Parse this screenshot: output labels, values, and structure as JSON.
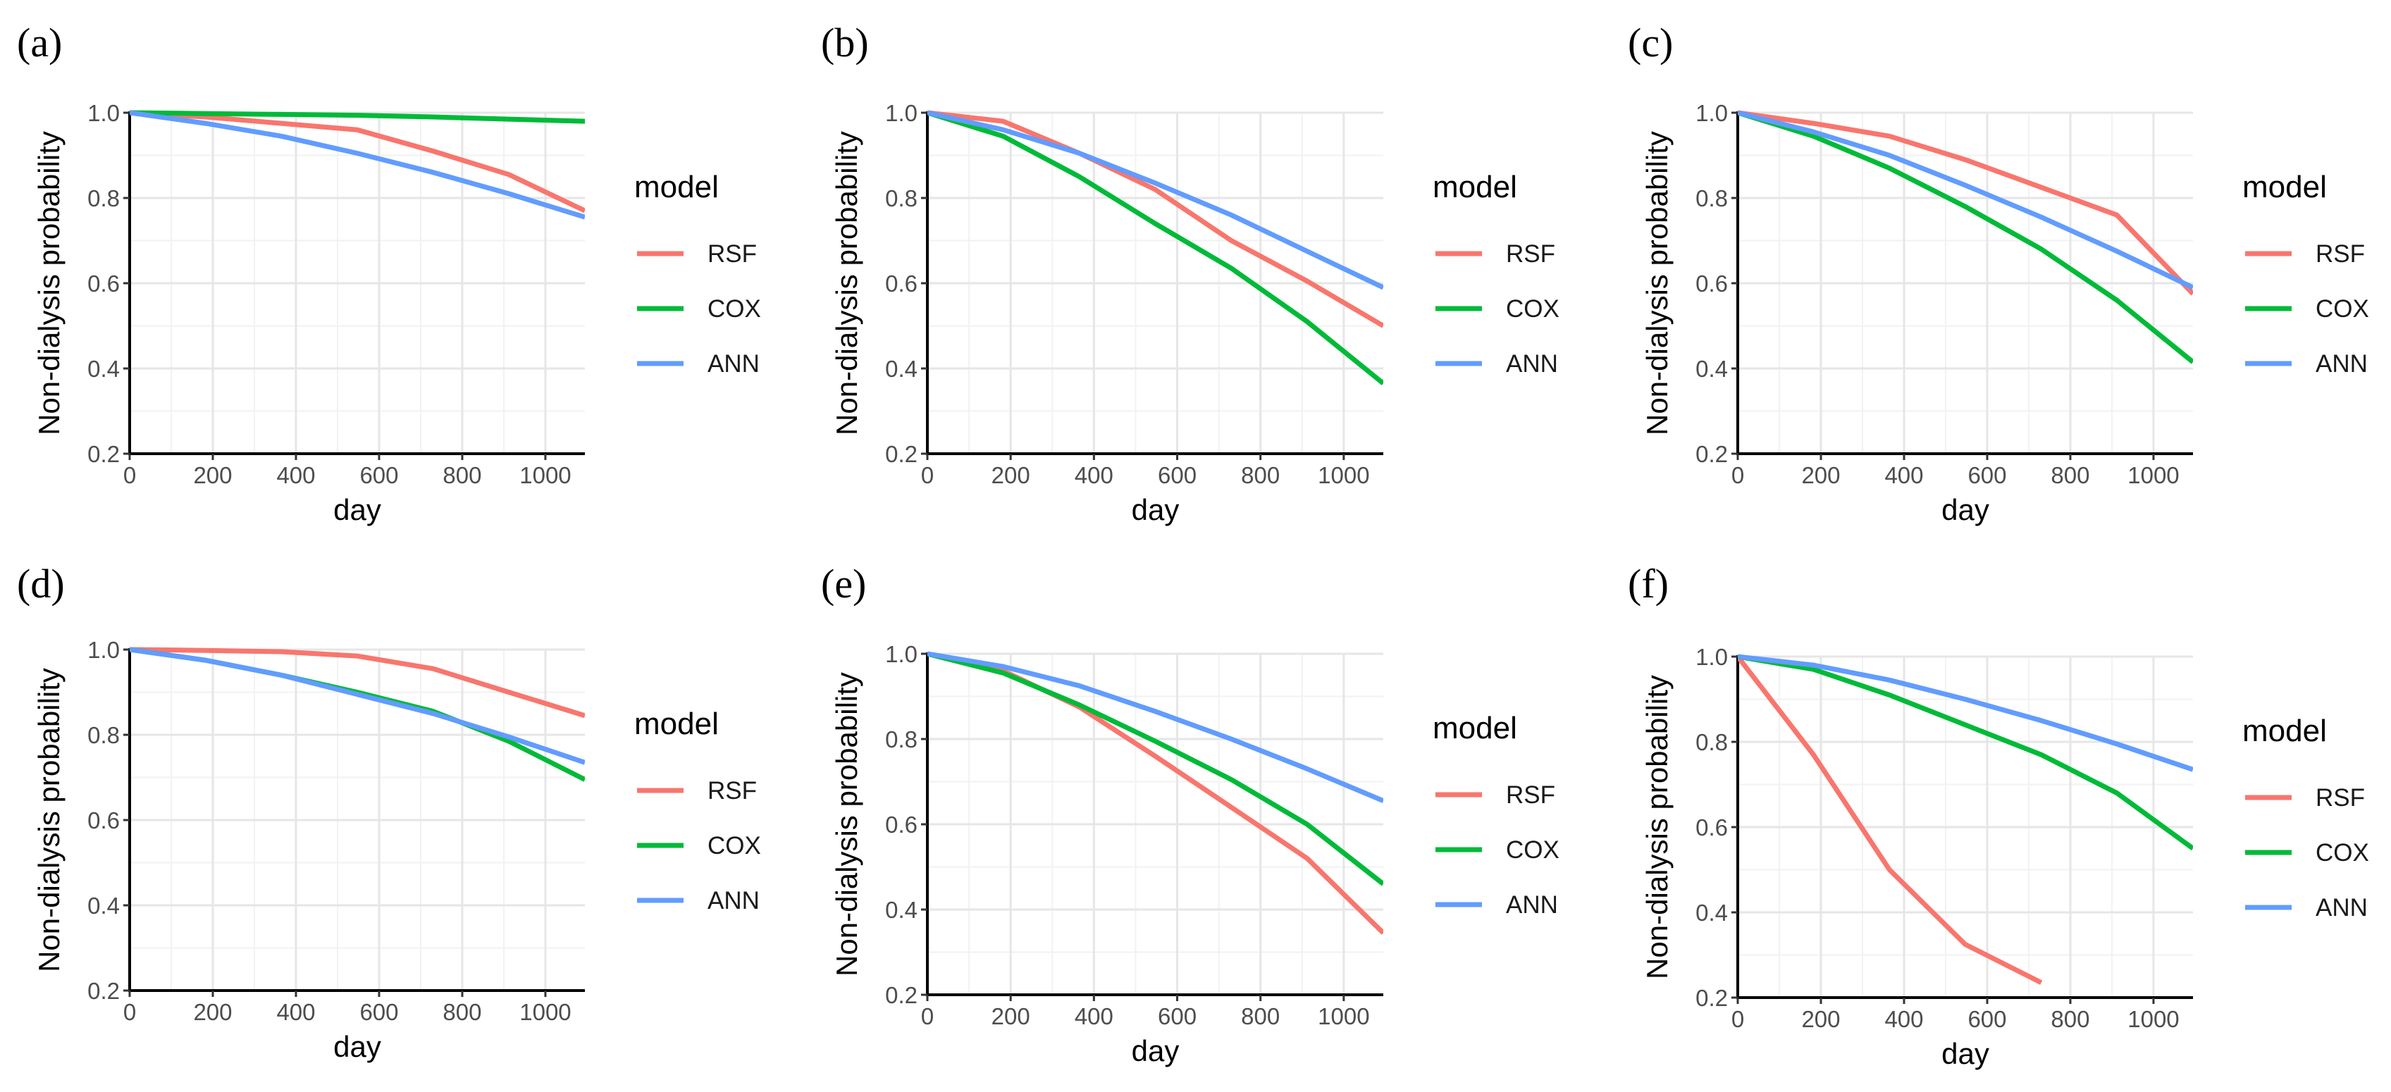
{
  "colors": {
    "RSF": "#F8766D",
    "COX": "#00BA38",
    "ANN": "#619CFF"
  },
  "chart_data": [
    {
      "panel": "(a)",
      "type": "line",
      "xlabel": "day",
      "ylabel": "Non-dialysis probability",
      "xlim": [
        0,
        1095
      ],
      "ylim": [
        0.2,
        1.0
      ],
      "xticks": [
        0,
        200,
        400,
        600,
        800,
        1000
      ],
      "yticks": [
        0.2,
        0.4,
        0.6,
        0.8,
        1.0
      ],
      "grid": true,
      "legend_title": "model",
      "legend_position": "right",
      "x": [
        0,
        182,
        365,
        547,
        730,
        912,
        1095
      ],
      "series": [
        {
          "name": "RSF",
          "values": [
            1.0,
            0.99,
            0.975,
            0.96,
            0.91,
            0.855,
            0.77
          ]
        },
        {
          "name": "COX",
          "values": [
            1.0,
            0.998,
            0.996,
            0.994,
            0.99,
            0.985,
            0.98
          ]
        },
        {
          "name": "ANN",
          "values": [
            1.0,
            0.975,
            0.945,
            0.905,
            0.86,
            0.81,
            0.755
          ]
        }
      ]
    },
    {
      "panel": "(b)",
      "type": "line",
      "xlabel": "day",
      "ylabel": "Non-dialysis probability",
      "xlim": [
        0,
        1095
      ],
      "ylim": [
        0.2,
        1.0
      ],
      "xticks": [
        0,
        200,
        400,
        600,
        800,
        1000
      ],
      "yticks": [
        0.2,
        0.4,
        0.6,
        0.8,
        1.0
      ],
      "grid": true,
      "legend_title": "model",
      "legend_position": "right",
      "x": [
        0,
        182,
        365,
        547,
        730,
        912,
        1095
      ],
      "series": [
        {
          "name": "RSF",
          "values": [
            1.0,
            0.98,
            0.905,
            0.82,
            0.7,
            0.605,
            0.5
          ]
        },
        {
          "name": "COX",
          "values": [
            1.0,
            0.945,
            0.85,
            0.74,
            0.635,
            0.51,
            0.365
          ]
        },
        {
          "name": "ANN",
          "values": [
            1.0,
            0.96,
            0.905,
            0.835,
            0.76,
            0.675,
            0.59
          ]
        }
      ]
    },
    {
      "panel": "(c)",
      "type": "line",
      "xlabel": "day",
      "ylabel": "Non-dialysis probability",
      "xlim": [
        0,
        1095
      ],
      "ylim": [
        0.2,
        1.0
      ],
      "xticks": [
        0,
        200,
        400,
        600,
        800,
        1000
      ],
      "yticks": [
        0.2,
        0.4,
        0.6,
        0.8,
        1.0
      ],
      "grid": true,
      "legend_title": "model",
      "legend_position": "right",
      "x": [
        0,
        182,
        365,
        547,
        730,
        912,
        1095
      ],
      "series": [
        {
          "name": "RSF",
          "values": [
            1.0,
            0.975,
            0.945,
            0.89,
            0.825,
            0.76,
            0.575
          ]
        },
        {
          "name": "COX",
          "values": [
            1.0,
            0.945,
            0.87,
            0.78,
            0.68,
            0.56,
            0.415
          ]
        },
        {
          "name": "ANN",
          "values": [
            1.0,
            0.955,
            0.9,
            0.83,
            0.755,
            0.675,
            0.59
          ]
        }
      ]
    },
    {
      "panel": "(d)",
      "type": "line",
      "xlabel": "day",
      "ylabel": "Non-dialysis probability",
      "xlim": [
        0,
        1095
      ],
      "ylim": [
        0.2,
        1.0
      ],
      "xticks": [
        0,
        200,
        400,
        600,
        800,
        1000
      ],
      "yticks": [
        0.2,
        0.4,
        0.6,
        0.8,
        1.0
      ],
      "grid": true,
      "legend_title": "model",
      "legend_position": "right",
      "x": [
        0,
        182,
        365,
        547,
        730,
        912,
        1095
      ],
      "series": [
        {
          "name": "RSF",
          "values": [
            1.0,
            0.998,
            0.995,
            0.985,
            0.955,
            0.9,
            0.845
          ]
        },
        {
          "name": "COX",
          "values": [
            1.0,
            0.975,
            0.94,
            0.9,
            0.855,
            0.785,
            0.695
          ]
        },
        {
          "name": "ANN",
          "values": [
            1.0,
            0.975,
            0.94,
            0.895,
            0.85,
            0.795,
            0.735
          ]
        }
      ]
    },
    {
      "panel": "(e)",
      "type": "line",
      "xlabel": "day",
      "ylabel": "Non-dialysis probability",
      "xlim": [
        0,
        1095
      ],
      "ylim": [
        0.2,
        1.0
      ],
      "xticks": [
        0,
        200,
        400,
        600,
        800,
        1000
      ],
      "yticks": [
        0.2,
        0.4,
        0.6,
        0.8,
        1.0
      ],
      "grid": true,
      "legend_title": "model",
      "legend_position": "right",
      "x": [
        0,
        182,
        365,
        547,
        730,
        912,
        1095
      ],
      "series": [
        {
          "name": "RSF",
          "values": [
            1.0,
            0.96,
            0.875,
            0.76,
            0.64,
            0.52,
            0.345
          ]
        },
        {
          "name": "COX",
          "values": [
            1.0,
            0.955,
            0.88,
            0.795,
            0.705,
            0.6,
            0.46
          ]
        },
        {
          "name": "ANN",
          "values": [
            1.0,
            0.97,
            0.925,
            0.865,
            0.8,
            0.73,
            0.655
          ]
        }
      ]
    },
    {
      "panel": "(f)",
      "type": "line",
      "xlabel": "day",
      "ylabel": "Non-dialysis probability",
      "xlim": [
        0,
        1095
      ],
      "ylim": [
        0.2,
        1.0
      ],
      "xticks": [
        0,
        200,
        400,
        600,
        800,
        1000
      ],
      "yticks": [
        0.2,
        0.4,
        0.6,
        0.8,
        1.0
      ],
      "grid": true,
      "legend_title": "model",
      "legend_position": "right",
      "x": [
        0,
        182,
        365,
        547,
        730,
        912,
        1095
      ],
      "series": [
        {
          "name": "RSF",
          "values": [
            1.0,
            0.77,
            0.5,
            0.325,
            0.235,
            null,
            null
          ]
        },
        {
          "name": "COX",
          "values": [
            1.0,
            0.97,
            0.91,
            0.84,
            0.77,
            0.68,
            0.55
          ]
        },
        {
          "name": "ANN",
          "values": [
            1.0,
            0.98,
            0.945,
            0.9,
            0.85,
            0.795,
            0.735
          ]
        }
      ]
    }
  ]
}
